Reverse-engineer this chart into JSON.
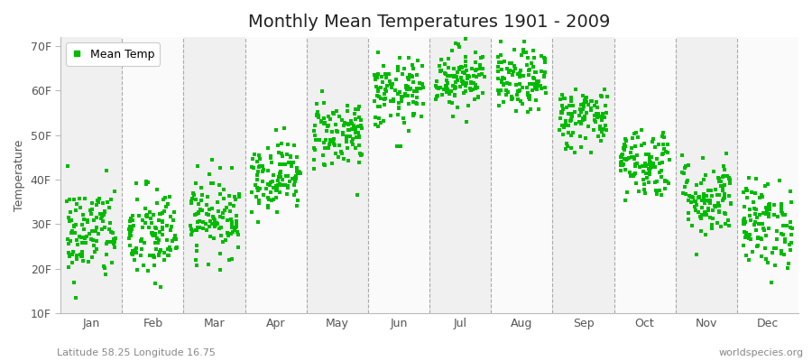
{
  "title": "Monthly Mean Temperatures 1901 - 2009",
  "ylabel": "Temperature",
  "footer_left": "Latitude 58.25 Longitude 16.75",
  "footer_right": "worldspecies.org",
  "legend_label": "Mean Temp",
  "dot_color": "#00bb00",
  "figure_bg": "#ffffff",
  "plot_bg": "#ffffff",
  "band_color_odd": "#f0f0f0",
  "band_color_even": "#fafafa",
  "yticks": [
    10,
    20,
    30,
    40,
    50,
    60,
    70
  ],
  "ytick_labels": [
    "10F",
    "20F",
    "30F",
    "40F",
    "50F",
    "60F",
    "70F"
  ],
  "ylim": [
    10,
    72
  ],
  "months": [
    "Jan",
    "Feb",
    "Mar",
    "Apr",
    "May",
    "Jun",
    "Jul",
    "Aug",
    "Sep",
    "Oct",
    "Nov",
    "Dec"
  ],
  "month_means_F": [
    28.0,
    27.5,
    32.0,
    41.0,
    50.5,
    59.0,
    63.0,
    62.0,
    54.0,
    44.0,
    36.0,
    30.0
  ],
  "month_stds_F": [
    5.5,
    5.5,
    4.5,
    4.0,
    4.0,
    4.0,
    3.5,
    3.5,
    3.5,
    4.0,
    4.5,
    5.0
  ],
  "n_years": 109,
  "seed": 42,
  "title_fontsize": 14,
  "axis_fontsize": 9,
  "tick_fontsize": 9,
  "footer_fontsize": 8,
  "dot_size": 8,
  "dot_alpha": 1.0
}
